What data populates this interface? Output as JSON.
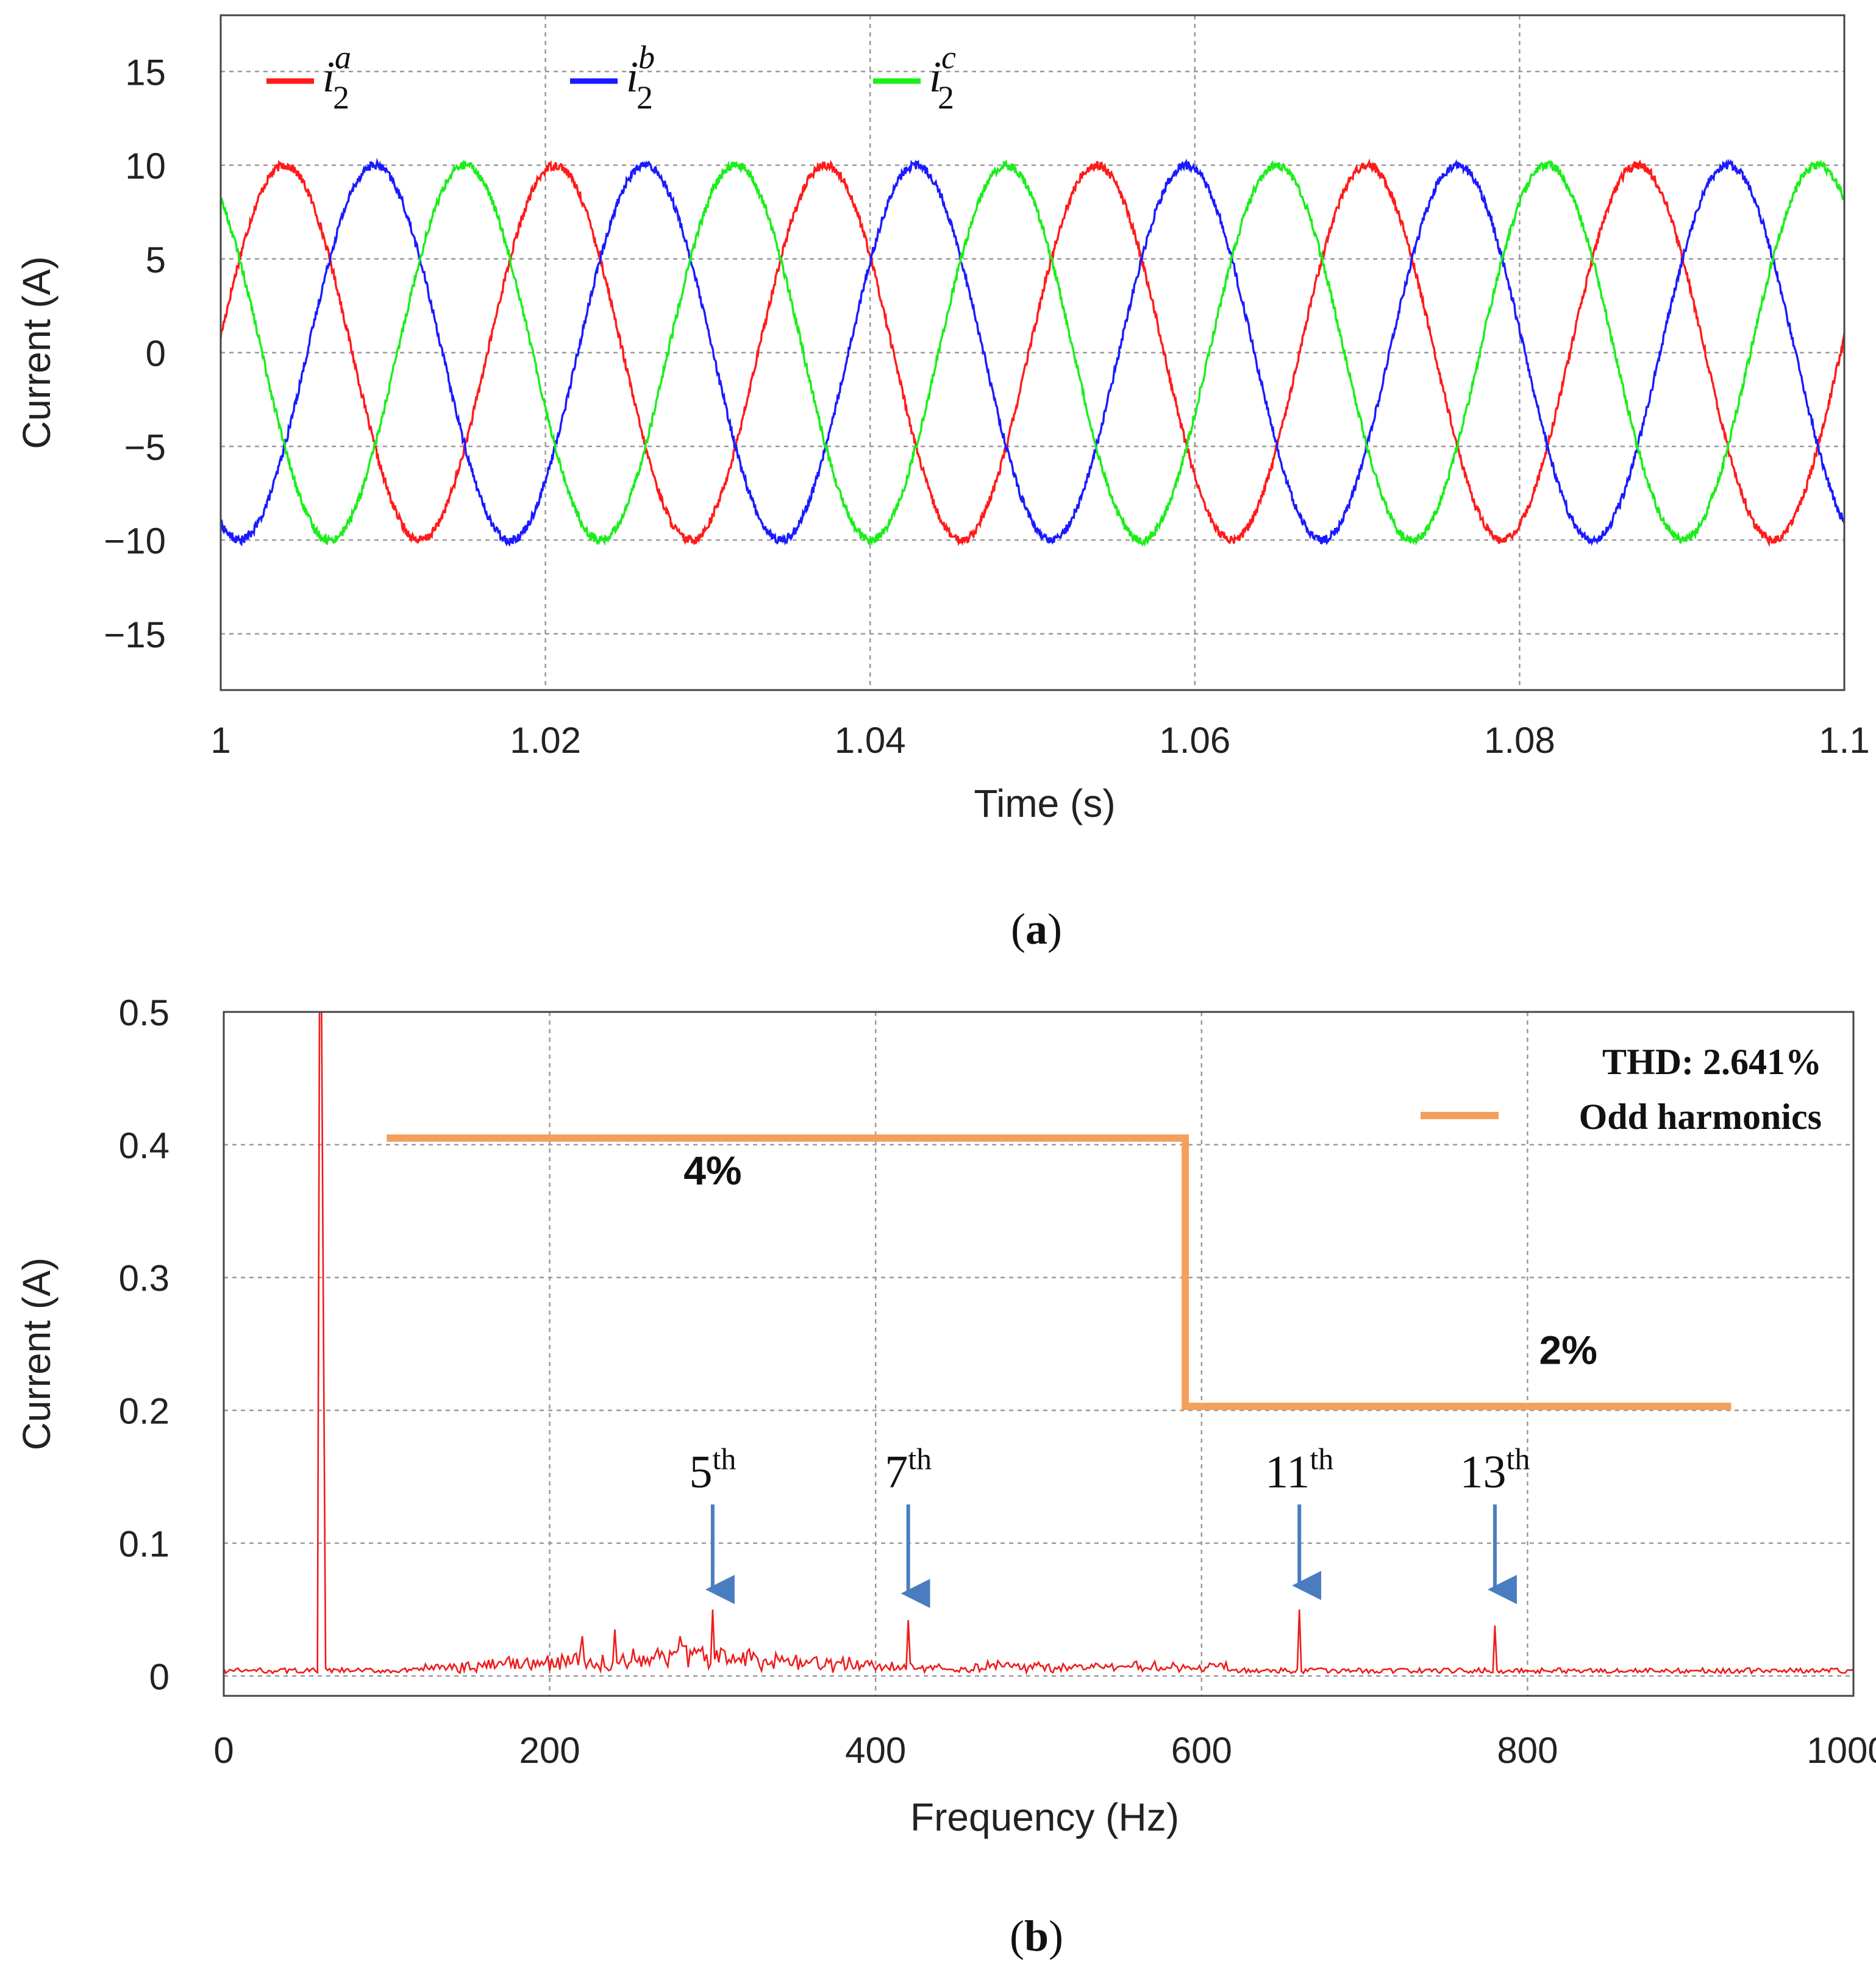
{
  "colors": {
    "phase_a": "#ff1a1a",
    "phase_b": "#1a1aff",
    "phase_c": "#1aee1a",
    "spectrum": "#ee1c1c",
    "limit_line": "#f4a05a",
    "arrow": "#4a7dbf",
    "grid": "#9a9a9a"
  },
  "chart_data": [
    {
      "type": "line",
      "panel_label": "a",
      "title": "",
      "xlabel": "Time (s)",
      "ylabel": "Current (A)",
      "xlim": [
        1.0,
        1.1
      ],
      "ylim": [
        -18,
        18
      ],
      "xticks": [
        1.0,
        1.02,
        1.04,
        1.06,
        1.08,
        1.1
      ],
      "xtick_labels": [
        "1",
        "1.02",
        "1.04",
        "1.06",
        "1.08",
        "1.1"
      ],
      "yticks": [
        15,
        10,
        5,
        0,
        -5,
        -10,
        -15
      ],
      "ytick_labels": [
        "15",
        "10",
        "5",
        "0",
        "−5",
        "−10",
        "−15"
      ],
      "grid": true,
      "legend_position": "top-left",
      "series": [
        {
          "name": "i2a",
          "label_base": "i",
          "label_sub": "2",
          "label_sup": "a",
          "amplitude": 10,
          "frequency_hz": 60,
          "phase_deg": 5,
          "color_key": "phase_a"
        },
        {
          "name": "i2b",
          "label_base": "i",
          "label_sub": "2",
          "label_sup": "b",
          "amplitude": 10,
          "frequency_hz": 60,
          "phase_deg": -115,
          "color_key": "phase_b"
        },
        {
          "name": "i2c",
          "label_base": "i",
          "label_sub": "2",
          "label_sup": "c",
          "amplitude": 10,
          "frequency_hz": 60,
          "phase_deg": 125,
          "color_key": "phase_c"
        }
      ]
    },
    {
      "type": "line",
      "panel_label": "b",
      "title": "",
      "xlabel": "Frequency (Hz)",
      "ylabel": "Current (A)",
      "xlim": [
        0,
        1000
      ],
      "ylim": [
        -0.015,
        0.5
      ],
      "xticks": [
        0,
        200,
        400,
        600,
        800,
        1000
      ],
      "xtick_labels": [
        "0",
        "200",
        "400",
        "600",
        "800",
        "1000"
      ],
      "yticks": [
        0.5,
        0.4,
        0.3,
        0.2,
        0.1,
        0
      ],
      "ytick_labels": [
        "0.5",
        "0.4",
        "0.3",
        "0.2",
        "0.1",
        "0"
      ],
      "grid": true,
      "spectrum": {
        "name": "Current spectrum",
        "fundamental_hz": 60,
        "fundamental_value": 0.5,
        "peaks": [
          {
            "x": 60,
            "y": 0.5
          },
          {
            "x": 61,
            "y": 0.25
          },
          {
            "x": 220,
            "y": 0.03
          },
          {
            "x": 240,
            "y": 0.035
          },
          {
            "x": 280,
            "y": 0.03
          },
          {
            "x": 300,
            "y": 0.05
          },
          {
            "x": 420,
            "y": 0.042
          },
          {
            "x": 660,
            "y": 0.05
          },
          {
            "x": 780,
            "y": 0.038
          }
        ]
      },
      "limit_line": {
        "name": "Odd harmonics",
        "points": [
          [
            100,
            0.405
          ],
          [
            590,
            0.405
          ],
          [
            590,
            0.203
          ],
          [
            925,
            0.203
          ]
        ]
      },
      "legend_position": "top-right",
      "thd_label": "THD: 2.641%",
      "annotations": [
        {
          "text": "4%",
          "x": 300,
          "y": 0.37
        },
        {
          "text": "2%",
          "x": 825,
          "y": 0.235
        }
      ],
      "harmonic_markers": [
        {
          "order_text": "5",
          "sup": "th",
          "x": 300,
          "y_tip": 0.055
        },
        {
          "order_text": "7",
          "sup": "th",
          "x": 420,
          "y_tip": 0.052
        },
        {
          "order_text": "11",
          "sup": "th",
          "x": 660,
          "y_tip": 0.058
        },
        {
          "order_text": "13",
          "sup": "th",
          "x": 780,
          "y_tip": 0.055
        }
      ]
    }
  ]
}
